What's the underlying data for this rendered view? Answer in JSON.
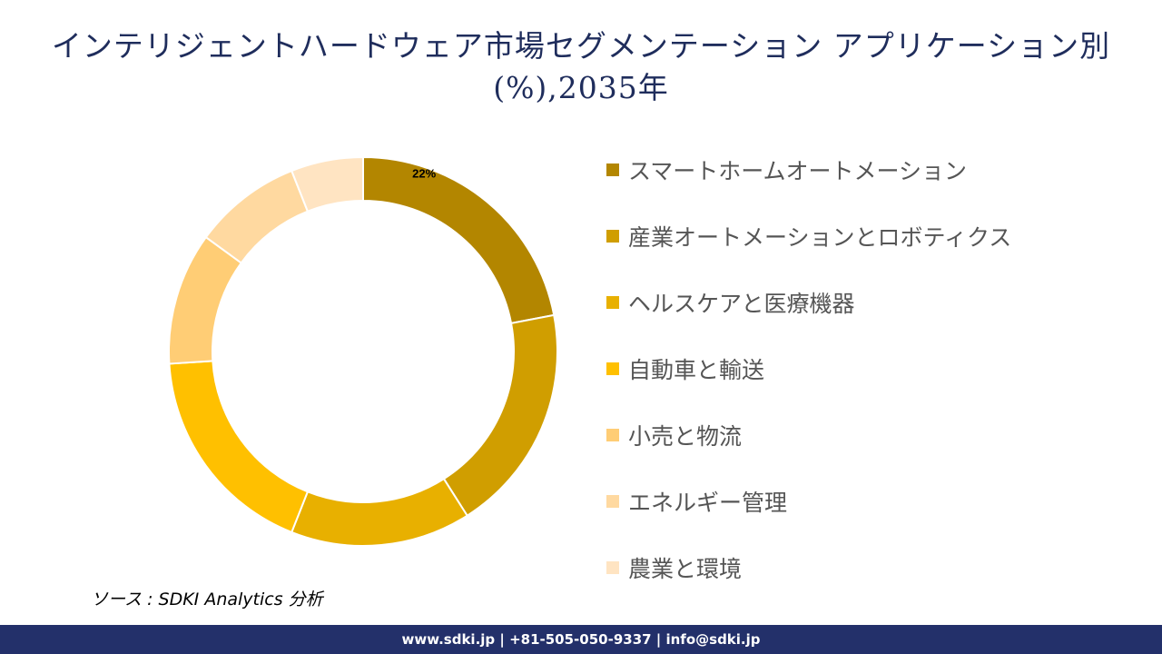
{
  "title": "インテリジェントハードウェア市場セグメンテーション アプリケーション別(%),2035年",
  "chart_data": {
    "type": "pie",
    "donut": true,
    "title": "インテリジェントハードウェア市場セグメンテーション アプリケーション別(%),2035年",
    "categories": [
      "スマートホームオートメーション",
      "産業オートメーションとロボティクス",
      "ヘルスケアと医療機器",
      "自動車と輸送",
      "小売と物流",
      "エネルギー管理",
      "農業と環境"
    ],
    "values": [
      22,
      19,
      15,
      18,
      11,
      9,
      6
    ],
    "data_labels": [
      "22%",
      "",
      "",
      "",
      "",
      "",
      ""
    ],
    "colors": [
      "#B38600",
      "#D09E00",
      "#E8B000",
      "#FFC000",
      "#FFCD75",
      "#FFD9A0",
      "#FFE4C2"
    ],
    "legend_position": "right"
  },
  "source": "ソース : SDKI Analytics 分析",
  "footer": "www.sdki.jp | +81-505-050-9337 | info@sdki.jp"
}
